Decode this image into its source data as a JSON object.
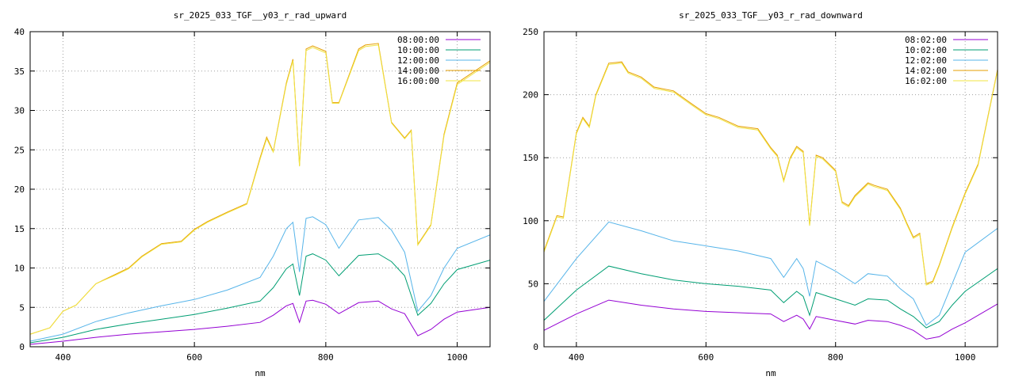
{
  "chart_data": [
    {
      "type": "line",
      "title": "sr_2025_033_TGF__y03_r_rad_upward",
      "xlabel": "nm",
      "ylabel": "",
      "xlim": [
        350,
        1050
      ],
      "ylim": [
        0,
        40
      ],
      "xticks": [
        400,
        600,
        800,
        1000
      ],
      "yticks": [
        0,
        5,
        10,
        15,
        20,
        25,
        30,
        35,
        40
      ],
      "grid": true,
      "legend_position": "top-right",
      "series": [
        {
          "name": "08:00:00",
          "color": "#9400d3",
          "x": [
            350,
            400,
            450,
            500,
            550,
            600,
            650,
            700,
            720,
            740,
            750,
            760,
            770,
            780,
            800,
            820,
            850,
            880,
            900,
            920,
            940,
            960,
            980,
            1000,
            1050
          ],
          "y": [
            0.3,
            0.7,
            1.2,
            1.6,
            1.9,
            2.2,
            2.6,
            3.1,
            4.0,
            5.2,
            5.5,
            3.1,
            5.8,
            5.9,
            5.4,
            4.2,
            5.6,
            5.8,
            4.8,
            4.2,
            1.4,
            2.2,
            3.5,
            4.4,
            5.0
          ]
        },
        {
          "name": "10:00:00",
          "color": "#009e73",
          "x": [
            350,
            400,
            450,
            500,
            550,
            600,
            650,
            700,
            720,
            740,
            750,
            760,
            770,
            780,
            800,
            820,
            850,
            880,
            900,
            920,
            940,
            960,
            980,
            1000,
            1050
          ],
          "y": [
            0.5,
            1.2,
            2.2,
            2.9,
            3.5,
            4.1,
            4.9,
            5.8,
            7.5,
            9.9,
            10.5,
            6.5,
            11.5,
            11.8,
            11.0,
            9.0,
            11.6,
            11.8,
            10.8,
            9.0,
            4.0,
            5.5,
            8.0,
            9.8,
            11.0
          ]
        },
        {
          "name": "12:00:00",
          "color": "#56b4e9",
          "x": [
            350,
            400,
            450,
            500,
            550,
            600,
            650,
            700,
            720,
            740,
            750,
            760,
            770,
            780,
            800,
            820,
            850,
            880,
            900,
            920,
            940,
            960,
            980,
            1000,
            1050
          ],
          "y": [
            0.7,
            1.6,
            3.2,
            4.3,
            5.2,
            6.0,
            7.2,
            8.8,
            11.5,
            15.0,
            15.8,
            9.5,
            16.3,
            16.5,
            15.5,
            12.5,
            16.1,
            16.4,
            14.8,
            12.0,
            4.5,
            6.5,
            10.0,
            12.5,
            14.2
          ]
        },
        {
          "name": "14:00:00",
          "color": "#e69f00",
          "x": [
            350,
            380,
            400,
            420,
            450,
            480,
            500,
            520,
            550,
            580,
            600,
            620,
            650,
            680,
            700,
            710,
            720,
            740,
            750,
            760,
            770,
            780,
            800,
            810,
            820,
            850,
            860,
            880,
            900,
            920,
            930,
            940,
            960,
            980,
            1000,
            1050
          ],
          "y": [
            1.6,
            2.4,
            4.5,
            5.3,
            8.0,
            9.2,
            10.0,
            11.5,
            13.1,
            13.4,
            14.9,
            15.9,
            17.1,
            18.2,
            24.0,
            26.6,
            24.8,
            33.5,
            36.5,
            23.0,
            37.8,
            38.2,
            37.5,
            31.0,
            31.0,
            37.8,
            38.3,
            38.5,
            28.5,
            26.5,
            27.5,
            13.0,
            15.5,
            27.0,
            33.5,
            36.3
          ]
        },
        {
          "name": "16:00:00",
          "color": "#f0e442",
          "x": [
            350,
            380,
            400,
            420,
            450,
            480,
            500,
            520,
            550,
            580,
            600,
            620,
            650,
            680,
            700,
            710,
            720,
            740,
            750,
            760,
            770,
            780,
            800,
            810,
            820,
            850,
            860,
            880,
            900,
            920,
            930,
            940,
            960,
            980,
            1000,
            1050
          ],
          "y": [
            1.6,
            2.4,
            4.5,
            5.3,
            8.0,
            9.1,
            9.9,
            11.4,
            13.0,
            13.3,
            14.8,
            15.8,
            17.0,
            18.1,
            23.8,
            26.4,
            24.7,
            33.3,
            36.3,
            22.9,
            37.6,
            38.0,
            37.3,
            30.9,
            30.9,
            37.6,
            38.1,
            38.3,
            28.4,
            26.4,
            27.4,
            12.9,
            15.4,
            26.8,
            33.3,
            36.1
          ]
        }
      ]
    },
    {
      "type": "line",
      "title": "sr_2025_033_TGF__y03_r_rad_downward",
      "xlabel": "nm",
      "ylabel": "",
      "xlim": [
        350,
        1050
      ],
      "ylim": [
        0,
        250
      ],
      "xticks": [
        400,
        600,
        800,
        1000
      ],
      "yticks": [
        0,
        50,
        100,
        150,
        200,
        250
      ],
      "grid": true,
      "legend_position": "top-right",
      "series": [
        {
          "name": "08:02:00",
          "color": "#9400d3",
          "x": [
            350,
            400,
            450,
            500,
            550,
            600,
            650,
            700,
            720,
            740,
            750,
            760,
            770,
            800,
            830,
            850,
            880,
            900,
            920,
            940,
            960,
            980,
            1000,
            1050
          ],
          "y": [
            13,
            26,
            37,
            33,
            30,
            28,
            27,
            26,
            20,
            25,
            22,
            14,
            24,
            21,
            18,
            21,
            20,
            17,
            13,
            6,
            8,
            14,
            19,
            34
          ]
        },
        {
          "name": "10:02:00",
          "color": "#009e73",
          "x": [
            350,
            400,
            450,
            500,
            550,
            600,
            650,
            700,
            720,
            740,
            750,
            760,
            770,
            800,
            830,
            850,
            880,
            900,
            920,
            940,
            960,
            980,
            1000,
            1050
          ],
          "y": [
            21,
            45,
            64,
            58,
            53,
            50,
            48,
            45,
            35,
            44,
            40,
            25,
            43,
            38,
            33,
            38,
            37,
            30,
            24,
            15,
            20,
            33,
            44,
            62
          ]
        },
        {
          "name": "12:02:00",
          "color": "#56b4e9",
          "x": [
            350,
            400,
            450,
            500,
            550,
            600,
            650,
            700,
            720,
            740,
            750,
            760,
            770,
            800,
            830,
            850,
            880,
            900,
            920,
            940,
            960,
            980,
            1000,
            1050
          ],
          "y": [
            36,
            70,
            99,
            92,
            84,
            80,
            76,
            70,
            55,
            70,
            62,
            40,
            68,
            60,
            50,
            58,
            56,
            46,
            38,
            17,
            25,
            50,
            75,
            94
          ]
        },
        {
          "name": "14:02:00",
          "color": "#e69f00",
          "x": [
            350,
            370,
            380,
            400,
            410,
            420,
            430,
            450,
            470,
            480,
            500,
            520,
            550,
            580,
            600,
            620,
            650,
            680,
            700,
            710,
            720,
            730,
            740,
            750,
            760,
            770,
            780,
            800,
            810,
            820,
            830,
            850,
            860,
            880,
            900,
            910,
            920,
            930,
            940,
            950,
            960,
            980,
            1000,
            1020,
            1050
          ],
          "y": [
            76,
            104,
            103,
            170,
            182,
            175,
            200,
            225,
            226,
            218,
            214,
            206,
            203,
            192,
            185,
            182,
            175,
            173,
            158,
            152,
            132,
            150,
            159,
            155,
            97,
            152,
            150,
            140,
            115,
            112,
            120,
            130,
            128,
            125,
            110,
            98,
            87,
            90,
            50,
            52,
            65,
            95,
            122,
            145,
            220
          ]
        },
        {
          "name": "16:02:00",
          "color": "#f0e442",
          "x": [
            350,
            370,
            380,
            400,
            410,
            420,
            430,
            450,
            470,
            480,
            500,
            520,
            550,
            580,
            600,
            620,
            650,
            680,
            700,
            710,
            720,
            730,
            740,
            750,
            760,
            770,
            780,
            800,
            810,
            820,
            830,
            850,
            860,
            880,
            900,
            910,
            920,
            930,
            940,
            950,
            960,
            980,
            1000,
            1020,
            1050
          ],
          "y": [
            75,
            103,
            102,
            169,
            181,
            174,
            199,
            224,
            225,
            217,
            213,
            205,
            202,
            191,
            184,
            181,
            174,
            172,
            157,
            151,
            131,
            149,
            158,
            154,
            96,
            151,
            149,
            139,
            114,
            111,
            119,
            129,
            127,
            124,
            109,
            97,
            86,
            89,
            49,
            51,
            64,
            94,
            121,
            144,
            219
          ]
        }
      ]
    }
  ]
}
